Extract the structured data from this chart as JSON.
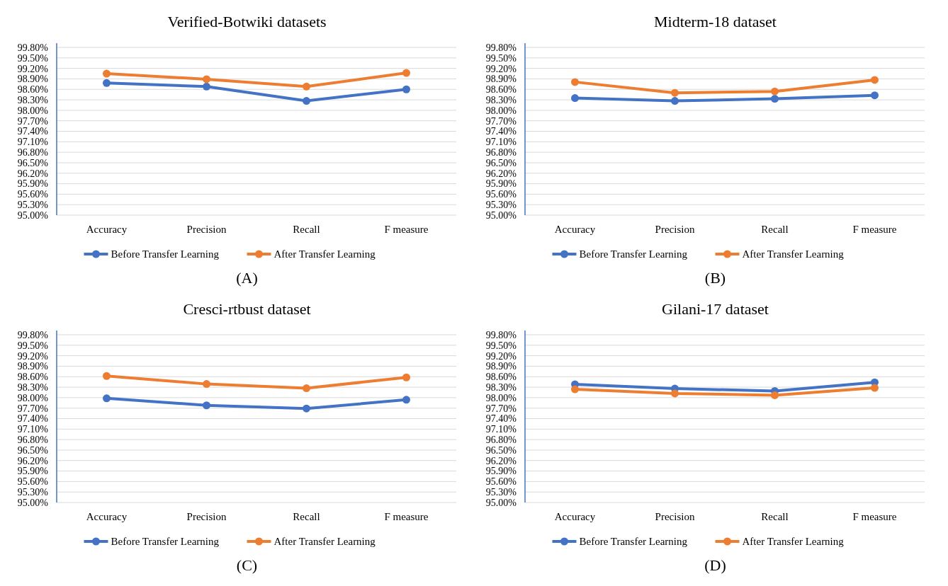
{
  "chart_data": [
    {
      "type": "line",
      "title": "Verified-Botwiki datasets",
      "categories": [
        "Accuracy",
        "Precision",
        "Recall",
        "F measure"
      ],
      "ylim": [
        95,
        99.8
      ],
      "yticks": [
        {
          "value": 95,
          "label": "95.00%"
        },
        {
          "value": 95.3,
          "label": "95.30%"
        },
        {
          "value": 95.6,
          "label": "95.60%"
        },
        {
          "value": 95.9,
          "label": "95.90%"
        },
        {
          "value": 96.2,
          "label": "96.20%"
        },
        {
          "value": 96.5,
          "label": "96.50%"
        },
        {
          "value": 96.8,
          "label": "96.80%"
        },
        {
          "value": 97.1,
          "label": "97.10%"
        },
        {
          "value": 97.4,
          "label": "97.40%"
        },
        {
          "value": 97.7,
          "label": "97.70%"
        },
        {
          "value": 98,
          "label": "98.00%"
        },
        {
          "value": 98.3,
          "label": "98.30%"
        },
        {
          "value": 98.6,
          "label": "98.60%"
        },
        {
          "value": 98.9,
          "label": "98.90%"
        },
        {
          "value": 99.2,
          "label": "99.20%"
        },
        {
          "value": 99.5,
          "label": "99.50%"
        },
        {
          "value": 99.8,
          "label": "99.80%"
        }
      ],
      "grid": "y",
      "legend": "bottom",
      "marker": "circle",
      "annotations": [
        "(A)"
      ],
      "series": [
        {
          "name": "Before Transfer Learning",
          "color": "#4472c4",
          "values": [
            98.78,
            98.68,
            98.27,
            98.6
          ]
        },
        {
          "name": "After Transfer Learning",
          "color": "#ed7d31",
          "values": [
            99.05,
            98.89,
            98.68,
            99.07
          ]
        }
      ]
    },
    {
      "type": "line",
      "title": "Midterm-18 dataset",
      "categories": [
        "Accuracy",
        "Precision",
        "Recall",
        "F measure"
      ],
      "ylim": [
        95,
        99.8
      ],
      "yticks": [
        {
          "value": 95,
          "label": "95.00%"
        },
        {
          "value": 95.3,
          "label": "95.30%"
        },
        {
          "value": 95.6,
          "label": "95.60%"
        },
        {
          "value": 95.9,
          "label": "95.90%"
        },
        {
          "value": 96.2,
          "label": "96.20%"
        },
        {
          "value": 96.5,
          "label": "96.50%"
        },
        {
          "value": 96.8,
          "label": "96.80%"
        },
        {
          "value": 97.1,
          "label": "97.10%"
        },
        {
          "value": 97.4,
          "label": "97.40%"
        },
        {
          "value": 97.7,
          "label": "97.70%"
        },
        {
          "value": 98,
          "label": "98.00%"
        },
        {
          "value": 98.3,
          "label": "98.30%"
        },
        {
          "value": 98.6,
          "label": "98.60%"
        },
        {
          "value": 98.9,
          "label": "98.90%"
        },
        {
          "value": 99.2,
          "label": "99.20%"
        },
        {
          "value": 99.5,
          "label": "99.50%"
        },
        {
          "value": 99.8,
          "label": "99.80%"
        }
      ],
      "grid": "y",
      "legend": "bottom",
      "marker": "circle",
      "annotations": [
        "(B)"
      ],
      "series": [
        {
          "name": "Before Transfer Learning",
          "color": "#4472c4",
          "values": [
            98.35,
            98.27,
            98.33,
            98.43
          ]
        },
        {
          "name": "After Transfer Learning",
          "color": "#ed7d31",
          "values": [
            98.81,
            98.5,
            98.54,
            98.87
          ]
        }
      ]
    },
    {
      "type": "line",
      "title": "Cresci-rtbust dataset",
      "categories": [
        "Accuracy",
        "Precision",
        "Recall",
        "F measure"
      ],
      "ylim": [
        95,
        99.8
      ],
      "yticks": [
        {
          "value": 95,
          "label": "95.00%"
        },
        {
          "value": 95.3,
          "label": "95.30%"
        },
        {
          "value": 95.6,
          "label": "95.60%"
        },
        {
          "value": 95.9,
          "label": "95.90%"
        },
        {
          "value": 96.2,
          "label": "96.20%"
        },
        {
          "value": 96.5,
          "label": "96.50%"
        },
        {
          "value": 96.8,
          "label": "96.80%"
        },
        {
          "value": 97.1,
          "label": "97.10%"
        },
        {
          "value": 97.4,
          "label": "97.40%"
        },
        {
          "value": 97.7,
          "label": "97.70%"
        },
        {
          "value": 98,
          "label": "98.00%"
        },
        {
          "value": 98.3,
          "label": "98.30%"
        },
        {
          "value": 98.6,
          "label": "98.60%"
        },
        {
          "value": 98.9,
          "label": "98.90%"
        },
        {
          "value": 99.2,
          "label": "99.20%"
        },
        {
          "value": 99.5,
          "label": "99.50%"
        },
        {
          "value": 99.8,
          "label": "99.80%"
        }
      ],
      "grid": "y",
      "legend": "bottom",
      "marker": "circle",
      "annotations": [
        "(C)"
      ],
      "series": [
        {
          "name": "Before Transfer Learning",
          "color": "#4472c4",
          "values": [
            97.98,
            97.78,
            97.69,
            97.94
          ]
        },
        {
          "name": "After Transfer Learning",
          "color": "#ed7d31",
          "values": [
            98.62,
            98.39,
            98.27,
            98.58
          ]
        }
      ]
    },
    {
      "type": "line",
      "title": "Gilani-17 dataset",
      "categories": [
        "Accuracy",
        "Precision",
        "Recall",
        "F measure"
      ],
      "ylim": [
        95,
        99.8
      ],
      "yticks": [
        {
          "value": 95,
          "label": "95.00%"
        },
        {
          "value": 95.3,
          "label": "95.30%"
        },
        {
          "value": 95.6,
          "label": "95.60%"
        },
        {
          "value": 95.9,
          "label": "95.90%"
        },
        {
          "value": 96.2,
          "label": "96.20%"
        },
        {
          "value": 96.5,
          "label": "96.50%"
        },
        {
          "value": 96.8,
          "label": "96.80%"
        },
        {
          "value": 97.1,
          "label": "97.10%"
        },
        {
          "value": 97.4,
          "label": "97.40%"
        },
        {
          "value": 97.7,
          "label": "97.70%"
        },
        {
          "value": 98,
          "label": "98.00%"
        },
        {
          "value": 98.3,
          "label": "98.30%"
        },
        {
          "value": 98.6,
          "label": "98.60%"
        },
        {
          "value": 98.9,
          "label": "98.90%"
        },
        {
          "value": 99.2,
          "label": "99.20%"
        },
        {
          "value": 99.5,
          "label": "99.50%"
        },
        {
          "value": 99.8,
          "label": "99.80%"
        }
      ],
      "grid": "y",
      "legend": "bottom",
      "marker": "circle",
      "annotations": [
        "(D)"
      ],
      "series": [
        {
          "name": "Before Transfer Learning",
          "color": "#4472c4",
          "values": [
            98.38,
            98.26,
            98.19,
            98.44
          ]
        },
        {
          "name": "After Transfer Learning",
          "color": "#ed7d31",
          "values": [
            98.24,
            98.12,
            98.07,
            98.28
          ]
        }
      ]
    }
  ]
}
